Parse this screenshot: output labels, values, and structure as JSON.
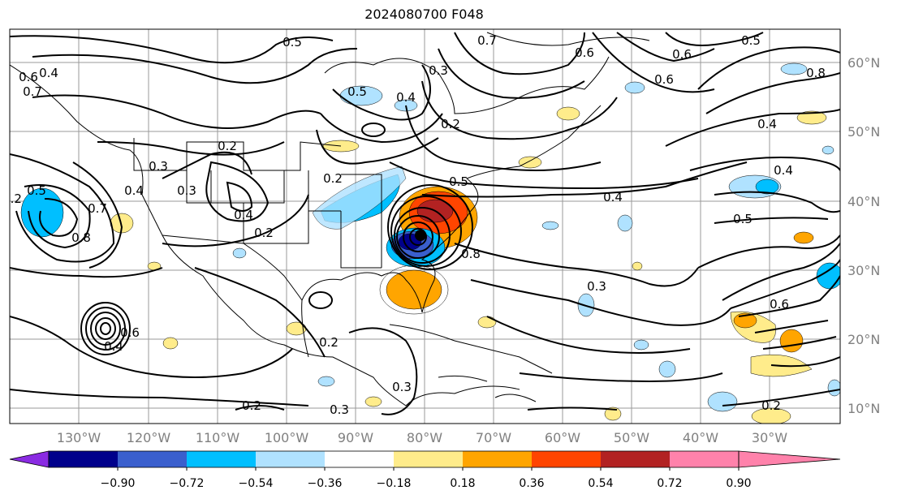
{
  "map": {
    "title": "2024080700 F048",
    "lat_labels": [
      "60°N",
      "50°N",
      "40°N",
      "30°N",
      "20°N",
      "10°N"
    ],
    "lon_labels": [
      "130°W",
      "120°W",
      "110°W",
      "100°W",
      "90°W",
      "80°W",
      "70°W",
      "60°W",
      "50°W",
      "40°W",
      "30°W"
    ],
    "contour_labels": [
      "0.5",
      "0.7",
      "0.6",
      "0.5",
      "0.2",
      "0.3",
      "0.2",
      "0.4",
      "0.2",
      "0.5",
      "0.4",
      "0.5",
      "0.5",
      "0.4",
      "0.6",
      "0.8",
      "0.7",
      "0.4",
      "0.6",
      "0.8",
      "0.2",
      "0.3",
      "0.6",
      "0.5",
      "0.8",
      "0.6",
      "0.4",
      "0.7",
      "0.4",
      "0.3",
      "0.3",
      "0.2",
      "0.2",
      "0.2",
      "0.3",
      "0.2",
      "0.4",
      "0.6",
      "0.3",
      "0.4"
    ]
  },
  "colorbar": {
    "ticks": [
      "−0.90",
      "−0.72",
      "−0.54",
      "−0.36",
      "−0.18",
      "0.18",
      "0.36",
      "0.54",
      "0.72",
      "0.90"
    ],
    "colors": [
      "#8a2be2",
      "#00008b",
      "#3a5fcd",
      "#00bfff",
      "#b0e2ff",
      "#ffffff",
      "#ffec8b",
      "#ffa500",
      "#ff4500",
      "#b22222",
      "#ff82ab"
    ]
  }
}
